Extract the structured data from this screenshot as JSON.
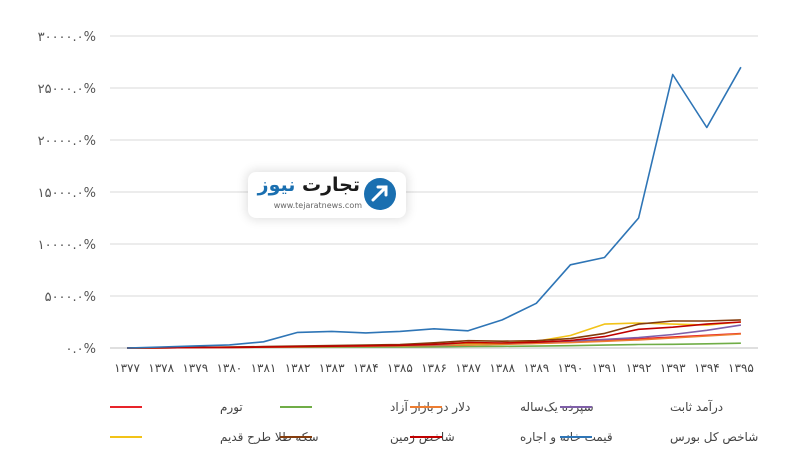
{
  "logo": {
    "word1": "تجارت",
    "word2": "نیوز",
    "url": "www.tejaratnews.com"
  },
  "chart_data": {
    "type": "line",
    "title": "",
    "xlabel": "",
    "ylabel": "",
    "ylim": [
      0,
      30000
    ],
    "y_ticks": [
      "۰.۰%",
      "۵۰۰۰.۰%",
      "۱۰۰۰۰.۰%",
      "۱۵۰۰۰.۰%",
      "۲۰۰۰۰.۰%",
      "۲۵۰۰۰.۰%",
      "۳۰۰۰۰.۰%"
    ],
    "y_tick_values": [
      0,
      5000,
      10000,
      15000,
      20000,
      25000,
      30000
    ],
    "categories": [
      "۱۳۷۷",
      "۱۳۷۸",
      "۱۳۷۹",
      "۱۳۸۰",
      "۱۳۸۱",
      "۱۳۸۲",
      "۱۳۸۳",
      "۱۳۸۴",
      "۱۳۸۵",
      "۱۳۸۶",
      "۱۳۸۷",
      "۱۳۸۸",
      "۱۳۸۹",
      "۱۳۹۰",
      "۱۳۹۱",
      "۱۳۹۲",
      "۱۳۹۳",
      "۱۳۹۴",
      "۱۳۹۵"
    ],
    "grid": true,
    "legend_position": "bottom",
    "series": [
      {
        "name": "تورم",
        "color": "#e8242a",
        "values": [
          0,
          20,
          40,
          60,
          80,
          110,
          140,
          170,
          200,
          240,
          300,
          380,
          460,
          560,
          700,
          880,
          1050,
          1220,
          1380
        ]
      },
      {
        "name": "دلار در بازار آزاد",
        "color": "#70ad47",
        "values": [
          0,
          20,
          50,
          60,
          70,
          80,
          90,
          100,
          110,
          120,
          140,
          160,
          180,
          220,
          280,
          340,
          360,
          400,
          460
        ]
      },
      {
        "name": "سپرده یک‌ساله",
        "color": "#ed7d31",
        "values": [
          0,
          20,
          40,
          60,
          80,
          110,
          140,
          170,
          210,
          250,
          300,
          360,
          430,
          520,
          640,
          780,
          960,
          1150,
          1350
        ]
      },
      {
        "name": "درآمد ثابت",
        "color": "#7f5fa8",
        "values": [
          0,
          20,
          40,
          70,
          100,
          140,
          180,
          220,
          270,
          320,
          390,
          470,
          560,
          680,
          830,
          1000,
          1300,
          1700,
          2200
        ]
      },
      {
        "name": "سکه طلا طرح قدیم",
        "color": "#f2c318",
        "values": [
          0,
          20,
          60,
          80,
          100,
          140,
          180,
          230,
          290,
          380,
          400,
          460,
          640,
          1200,
          2300,
          2400,
          2300,
          2200,
          2500
        ]
      },
      {
        "name": "شاخص زمین",
        "color": "#843c0c",
        "values": [
          0,
          30,
          60,
          90,
          130,
          180,
          230,
          280,
          340,
          500,
          700,
          650,
          700,
          900,
          1400,
          2300,
          2600,
          2600,
          2700
        ]
      },
      {
        "name": "قیمت خانه و اجاره",
        "color": "#c00000",
        "values": [
          0,
          20,
          40,
          60,
          90,
          130,
          170,
          210,
          260,
          360,
          520,
          480,
          560,
          720,
          1100,
          1800,
          2000,
          2300,
          2500
        ]
      },
      {
        "name": "شاخص کل بورس",
        "color": "#2e75b6",
        "values": [
          0,
          100,
          200,
          300,
          600,
          1500,
          1600,
          1450,
          1600,
          1850,
          1650,
          2700,
          4300,
          8000,
          8700,
          12500,
          26300,
          21200,
          27000
        ]
      }
    ]
  }
}
